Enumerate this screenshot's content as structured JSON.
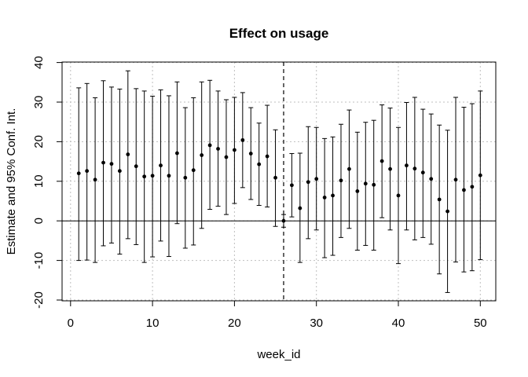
{
  "chart_data": {
    "type": "scatter",
    "title": "Effect on usage",
    "xlabel": "week_id",
    "ylabel": "Estimate and 95% Conf. Int.",
    "xlim": [
      0,
      51
    ],
    "ylim": [
      -20,
      40
    ],
    "xticks": [
      0,
      10,
      20,
      30,
      40,
      50
    ],
    "yticks": [
      -20,
      -10,
      0,
      10,
      20,
      30,
      40
    ],
    "grid": true,
    "reference_hline": 0,
    "reference_vline": 26,
    "series": [
      {
        "x": [
          1,
          2,
          3,
          4,
          5,
          6,
          7,
          8,
          9,
          10,
          11,
          12,
          13,
          14,
          15,
          16,
          17,
          18,
          19,
          20,
          21,
          22,
          23,
          24,
          25,
          26,
          27,
          28,
          29,
          30,
          31,
          32,
          33,
          34,
          35,
          36,
          37,
          38,
          39,
          40,
          41,
          42,
          43,
          44,
          45,
          46,
          47,
          48,
          49,
          50
        ],
        "estimate": [
          12.0,
          12.6,
          10.4,
          14.7,
          14.4,
          12.6,
          16.8,
          13.8,
          11.2,
          11.4,
          14.0,
          11.4,
          17.1,
          10.9,
          12.8,
          16.6,
          19.1,
          18.2,
          16.1,
          17.9,
          20.4,
          17.0,
          14.3,
          16.3,
          10.9,
          0.0,
          9.0,
          3.2,
          9.8,
          10.6,
          5.9,
          6.4,
          10.2,
          13.1,
          7.5,
          9.4,
          9.1,
          15.1,
          13.1,
          6.4,
          14.0,
          13.2,
          12.2,
          10.6,
          5.4,
          2.4,
          10.4,
          7.8,
          8.6,
          11.5
        ],
        "lower": [
          -10.0,
          -9.9,
          -10.5,
          -6.3,
          -5.6,
          -8.4,
          -4.5,
          -6.0,
          -10.5,
          -9.1,
          -5.1,
          -9.0,
          -0.7,
          -6.9,
          -6.1,
          -1.9,
          2.9,
          3.7,
          1.6,
          4.4,
          8.4,
          5.4,
          3.9,
          3.5,
          -1.4,
          -1.6,
          1.0,
          -10.5,
          -4.5,
          -2.3,
          -9.3,
          -8.7,
          -4.2,
          -1.9,
          -7.4,
          -6.2,
          -7.4,
          0.8,
          -2.3,
          -10.8,
          -2.3,
          -4.8,
          -4.2,
          -5.9,
          -13.4,
          -18.1,
          -10.4,
          -12.9,
          -12.6,
          -9.8
        ],
        "upper": [
          33.6,
          34.7,
          31.1,
          35.4,
          33.8,
          33.3,
          37.9,
          33.4,
          32.8,
          31.5,
          33.1,
          31.6,
          35.1,
          28.6,
          31.1,
          35.1,
          35.5,
          32.8,
          30.6,
          31.2,
          32.4,
          28.6,
          24.7,
          29.2,
          23.0,
          1.6,
          17.0,
          17.1,
          23.8,
          23.6,
          20.8,
          21.2,
          24.4,
          28.0,
          22.4,
          24.9,
          25.4,
          29.3,
          28.5,
          23.6,
          29.9,
          31.2,
          28.2,
          27.0,
          24.2,
          22.9,
          31.2,
          28.7,
          29.6,
          32.8
        ]
      }
    ]
  }
}
